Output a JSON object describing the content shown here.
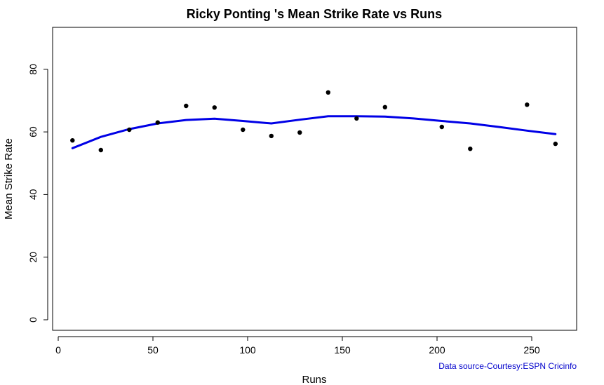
{
  "chart_data": {
    "type": "scatter",
    "title": "Ricky Ponting 's Mean Strike Rate vs Runs",
    "xlabel": "Runs",
    "ylabel": "Mean Strike Rate",
    "xlim": [
      0,
      270
    ],
    "ylim": [
      0,
      90
    ],
    "xticks": [
      "0",
      "50",
      "100",
      "150",
      "200",
      "250"
    ],
    "yticks": [
      "0",
      "20",
      "40",
      "60",
      "80"
    ],
    "grid": false,
    "source_note": "Data source-Courtesy:ESPN Cricinfo",
    "series": [
      {
        "kind": "points",
        "x": [
          7.5,
          22.5,
          37.5,
          52.5,
          67.5,
          82.5,
          97.5,
          112.5,
          127.5,
          142.5,
          157.5,
          172.5,
          202.5,
          217.5,
          247.5,
          262.5
        ],
        "y": [
          57.3,
          54.2,
          60.7,
          63.0,
          68.3,
          67.8,
          60.7,
          58.7,
          59.8,
          72.6,
          64.3,
          67.9,
          61.6,
          54.6,
          68.7,
          56.2
        ]
      },
      {
        "kind": "smooth-line",
        "x": [
          7.5,
          22.5,
          37.5,
          52.5,
          67.5,
          82.5,
          97.5,
          112.5,
          127.5,
          142.5,
          157.5,
          172.5,
          187.5,
          202.5,
          217.5,
          232.5,
          247.5,
          262.5
        ],
        "y": [
          54.8,
          58.4,
          60.9,
          62.7,
          63.8,
          64.2,
          63.5,
          62.7,
          63.9,
          65.0,
          65.0,
          64.9,
          64.3,
          63.5,
          62.7,
          61.6,
          60.4,
          59.3
        ]
      }
    ],
    "colors": {
      "points": "#000000",
      "line": "#0000e6",
      "source_note": "#0000cc"
    }
  }
}
